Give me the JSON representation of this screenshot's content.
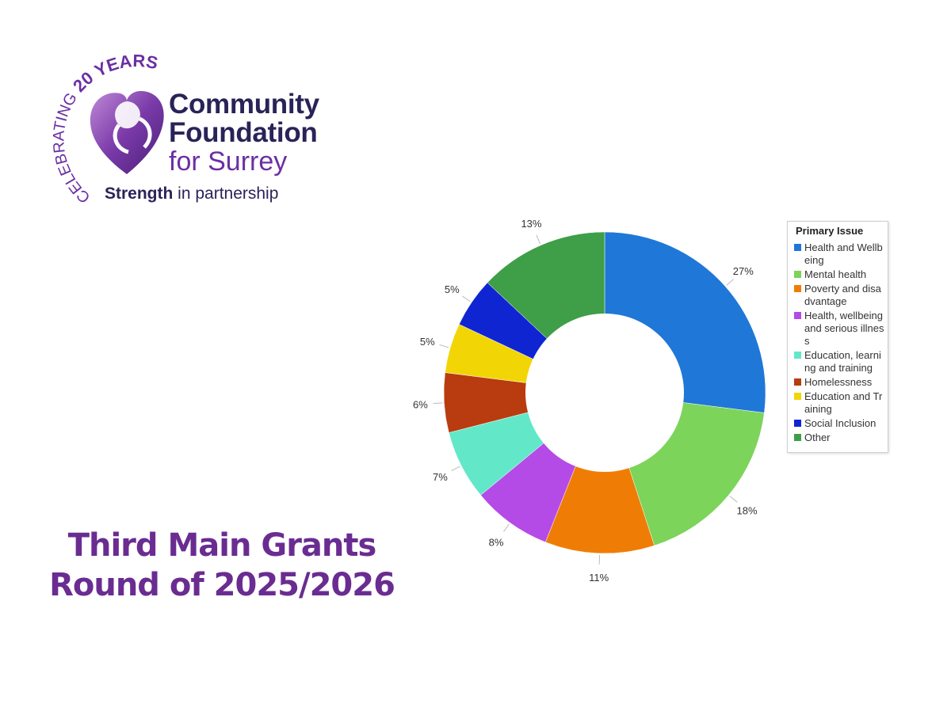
{
  "logo": {
    "arc_text_small": "CELEBRATING",
    "arc_text_big": "20 YEARS",
    "org_line1": "Community",
    "org_line2": "Foundation",
    "org_line3": "for Surrey",
    "tagline_strong": "Strength",
    "tagline_rest": " in partnership"
  },
  "headline": {
    "line1": "Third Main Grants",
    "line2": "Round of 2025/2026"
  },
  "chart_data": {
    "type": "pie",
    "legend_title": "Primary Issue",
    "legend_position": "right",
    "slices": [
      {
        "label": "Health and Wellbeing",
        "value": 27,
        "display": "27%",
        "color": "#1f77d8"
      },
      {
        "label": "Mental health",
        "value": 18,
        "display": "18%",
        "color": "#7cd45a"
      },
      {
        "label": "Poverty and disadvantage",
        "value": 11,
        "display": "11%",
        "color": "#ef7d05"
      },
      {
        "label": "Health, wellbeing and serious illness",
        "value": 8,
        "display": "8%",
        "color": "#b54be6"
      },
      {
        "label": "Education, learning and training",
        "value": 7,
        "display": "7%",
        "color": "#62e8c9"
      },
      {
        "label": "Homelessness",
        "value": 6,
        "display": "6%",
        "color": "#b83c10"
      },
      {
        "label": "Education and Training",
        "value": 5,
        "display": "5%",
        "color": "#f2d505"
      },
      {
        "label": "Social Inclusion",
        "value": 5,
        "display": "5%",
        "color": "#1025d2"
      },
      {
        "label": "Other",
        "value": 13,
        "display": "13%",
        "color": "#3f9e48"
      }
    ]
  }
}
